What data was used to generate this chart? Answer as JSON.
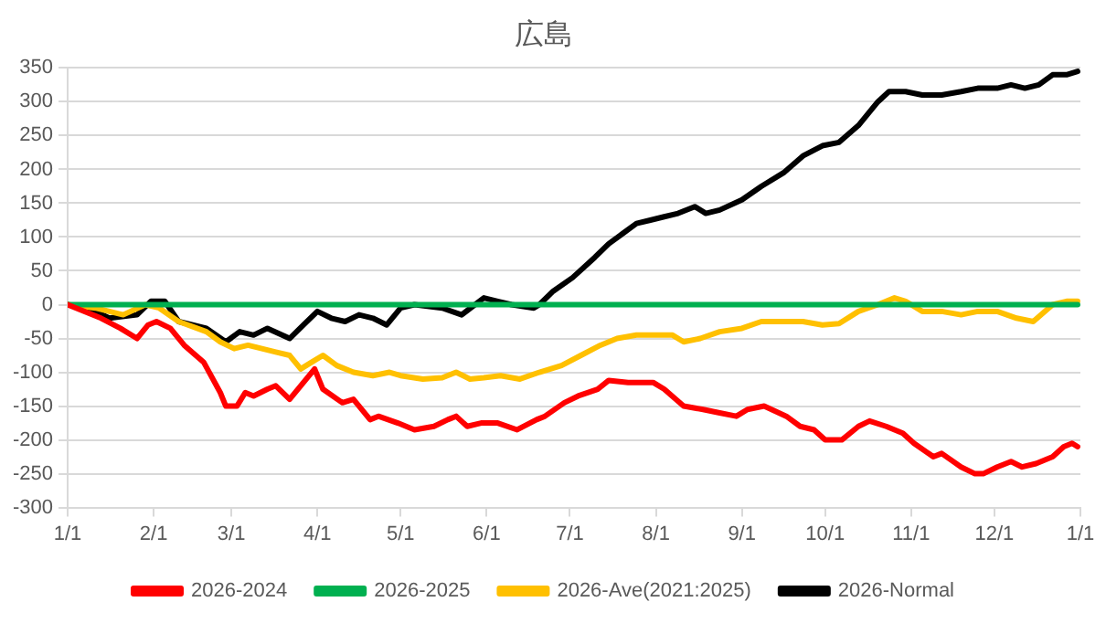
{
  "chart_data": {
    "type": "line",
    "title": "広島",
    "xlim": [
      "2026-01-01",
      "2027-01-01"
    ],
    "xticks": [
      {
        "value": "2026-01-01",
        "label": "1/1"
      },
      {
        "value": "2026-02-01",
        "label": "2/1"
      },
      {
        "value": "2026-03-01",
        "label": "3/1"
      },
      {
        "value": "2026-04-01",
        "label": "4/1"
      },
      {
        "value": "2026-05-01",
        "label": "5/1"
      },
      {
        "value": "2026-06-01",
        "label": "6/1"
      },
      {
        "value": "2026-07-01",
        "label": "7/1"
      },
      {
        "value": "2026-08-01",
        "label": "8/1"
      },
      {
        "value": "2026-09-01",
        "label": "9/1"
      },
      {
        "value": "2026-10-01",
        "label": "10/1"
      },
      {
        "value": "2026-11-01",
        "label": "11/1"
      },
      {
        "value": "2026-12-01",
        "label": "12/1"
      },
      {
        "value": "2027-01-01",
        "label": "1/1"
      }
    ],
    "ylim": [
      -300,
      350
    ],
    "yticks": [
      -300,
      -250,
      -200,
      -150,
      -100,
      -50,
      0,
      50,
      100,
      150,
      200,
      250,
      300,
      350
    ],
    "grid": "y",
    "legend": "bottom",
    "marker": "none",
    "line_style": "solid",
    "series": [
      {
        "name": "2026-2024",
        "color": "#ff0000",
        "x": [
          "2026-01-01",
          "2026-01-13",
          "2026-01-20",
          "2026-01-26",
          "2026-01-30",
          "2026-02-02",
          "2026-02-07",
          "2026-02-12",
          "2026-02-19",
          "2026-02-25",
          "2026-02-27",
          "2026-03-03",
          "2026-03-06",
          "2026-03-09",
          "2026-03-14",
          "2026-03-17",
          "2026-03-22",
          "2026-03-27",
          "2026-03-31",
          "2026-04-03",
          "2026-04-10",
          "2026-04-14",
          "2026-04-20",
          "2026-04-23",
          "2026-04-30",
          "2026-05-06",
          "2026-05-13",
          "2026-05-18",
          "2026-05-21",
          "2026-05-25",
          "2026-05-30",
          "2026-06-05",
          "2026-06-12",
          "2026-06-19",
          "2026-06-22",
          "2026-06-29",
          "2026-07-04",
          "2026-07-11",
          "2026-07-15",
          "2026-07-22",
          "2026-07-31",
          "2026-08-04",
          "2026-08-11",
          "2026-08-18",
          "2026-08-24",
          "2026-08-30",
          "2026-09-03",
          "2026-09-09",
          "2026-09-17",
          "2026-09-22",
          "2026-09-27",
          "2026-10-01",
          "2026-10-07",
          "2026-10-13",
          "2026-10-17",
          "2026-10-23",
          "2026-10-29",
          "2026-11-02",
          "2026-11-09",
          "2026-11-12",
          "2026-11-19",
          "2026-11-24",
          "2026-11-27",
          "2026-12-02",
          "2026-12-07",
          "2026-12-11",
          "2026-12-16",
          "2026-12-22",
          "2026-12-26",
          "2026-12-29",
          "2026-12-31"
        ],
        "values": [
          0,
          -20,
          -35,
          -50,
          -30,
          -25,
          -35,
          -60,
          -85,
          -130,
          -150,
          -150,
          -130,
          -135,
          -125,
          -120,
          -140,
          -115,
          -95,
          -125,
          -145,
          -140,
          -170,
          -165,
          -175,
          -185,
          -180,
          -170,
          -165,
          -180,
          -175,
          -175,
          -185,
          -170,
          -165,
          -145,
          -135,
          -125,
          -112,
          -115,
          -115,
          -125,
          -150,
          -155,
          -160,
          -165,
          -155,
          -150,
          -165,
          -180,
          -185,
          -200,
          -200,
          -180,
          -172,
          -180,
          -190,
          -205,
          -225,
          -220,
          -240,
          -250,
          -250,
          -240,
          -232,
          -240,
          -235,
          -225,
          -210,
          -205,
          -210
        ]
      },
      {
        "name": "2026-2025",
        "color": "#00b050",
        "x": [
          "2026-01-01",
          "2026-12-31"
        ],
        "values": [
          0,
          0
        ]
      },
      {
        "name": "2026-Ave(2021:2025)",
        "color": "#ffc000",
        "x": [
          "2026-01-01",
          "2026-01-11",
          "2026-01-21",
          "2026-01-29",
          "2026-02-03",
          "2026-02-10",
          "2026-02-20",
          "2026-02-25",
          "2026-03-02",
          "2026-03-07",
          "2026-03-12",
          "2026-03-17",
          "2026-03-22",
          "2026-03-26",
          "2026-03-30",
          "2026-04-03",
          "2026-04-08",
          "2026-04-14",
          "2026-04-21",
          "2026-04-27",
          "2026-05-01",
          "2026-05-09",
          "2026-05-16",
          "2026-05-21",
          "2026-05-26",
          "2026-05-31",
          "2026-06-06",
          "2026-06-13",
          "2026-06-20",
          "2026-06-28",
          "2026-07-05",
          "2026-07-12",
          "2026-07-18",
          "2026-07-25",
          "2026-08-01",
          "2026-08-07",
          "2026-08-11",
          "2026-08-17",
          "2026-08-24",
          "2026-09-01",
          "2026-09-08",
          "2026-09-16",
          "2026-09-23",
          "2026-09-30",
          "2026-10-06",
          "2026-10-13",
          "2026-10-20",
          "2026-10-26",
          "2026-10-30",
          "2026-11-05",
          "2026-11-12",
          "2026-11-19",
          "2026-11-25",
          "2026-12-02",
          "2026-12-09",
          "2026-12-15",
          "2026-12-22",
          "2026-12-27",
          "2026-12-31"
        ],
        "values": [
          0,
          -5,
          -15,
          0,
          -5,
          -25,
          -40,
          -55,
          -65,
          -60,
          -65,
          -70,
          -75,
          -95,
          -85,
          -75,
          -90,
          -100,
          -105,
          -100,
          -105,
          -110,
          -108,
          -100,
          -110,
          -108,
          -105,
          -110,
          -100,
          -90,
          -75,
          -60,
          -50,
          -45,
          -45,
          -45,
          -55,
          -50,
          -40,
          -35,
          -25,
          -25,
          -25,
          -30,
          -28,
          -10,
          0,
          10,
          5,
          -10,
          -10,
          -15,
          -10,
          -10,
          -20,
          -25,
          0,
          5,
          5
        ]
      },
      {
        "name": "2026-Normal",
        "color": "#000000",
        "x": [
          "2026-01-01",
          "2026-01-06",
          "2026-01-11",
          "2026-01-16",
          "2026-01-26",
          "2026-01-31",
          "2026-02-05",
          "2026-02-10",
          "2026-02-15",
          "2026-02-20",
          "2026-02-27",
          "2026-03-04",
          "2026-03-09",
          "2026-03-14",
          "2026-03-22",
          "2026-03-27",
          "2026-04-01",
          "2026-04-06",
          "2026-04-11",
          "2026-04-16",
          "2026-04-21",
          "2026-04-26",
          "2026-05-01",
          "2026-05-06",
          "2026-05-16",
          "2026-05-23",
          "2026-05-31",
          "2026-06-05",
          "2026-06-10",
          "2026-06-18",
          "2026-06-20",
          "2026-06-25",
          "2026-07-02",
          "2026-07-10",
          "2026-07-15",
          "2026-07-20",
          "2026-07-25",
          "2026-07-30",
          "2026-08-04",
          "2026-08-09",
          "2026-08-15",
          "2026-08-19",
          "2026-08-24",
          "2026-09-01",
          "2026-09-08",
          "2026-09-16",
          "2026-09-23",
          "2026-09-30",
          "2026-10-06",
          "2026-10-13",
          "2026-10-20",
          "2026-10-24",
          "2026-10-30",
          "2026-11-05",
          "2026-11-12",
          "2026-11-19",
          "2026-11-25",
          "2026-12-02",
          "2026-12-07",
          "2026-12-12",
          "2026-12-17",
          "2026-12-22",
          "2026-12-27",
          "2026-12-31"
        ],
        "values": [
          0,
          -5,
          -10,
          -20,
          -15,
          5,
          5,
          -25,
          -30,
          -35,
          -55,
          -40,
          -45,
          -35,
          -50,
          -30,
          -10,
          -20,
          -25,
          -15,
          -20,
          -30,
          -5,
          0,
          -5,
          -15,
          10,
          5,
          0,
          -5,
          0,
          20,
          40,
          70,
          90,
          105,
          120,
          125,
          130,
          135,
          145,
          135,
          140,
          155,
          175,
          195,
          220,
          235,
          240,
          265,
          300,
          315,
          315,
          310,
          310,
          315,
          320,
          320,
          325,
          320,
          325,
          340,
          340,
          345
        ]
      }
    ]
  }
}
